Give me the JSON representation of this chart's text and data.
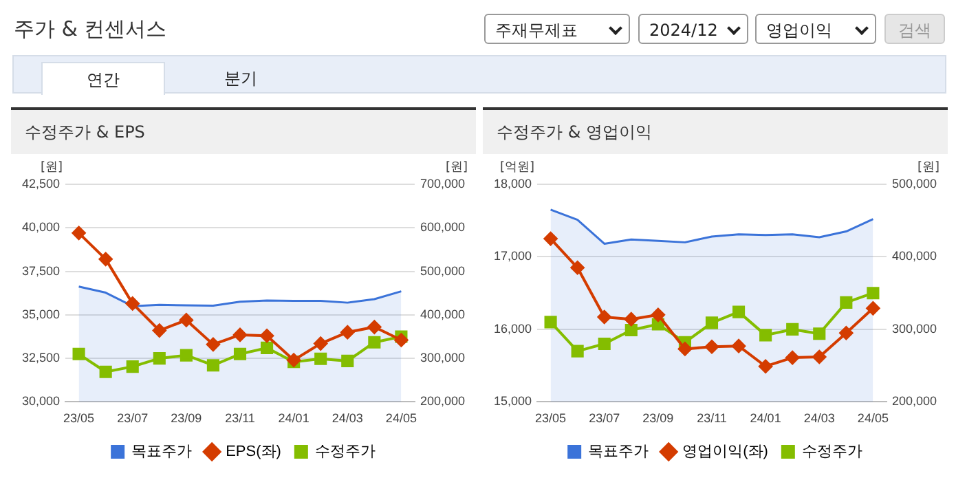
{
  "chart_data": [
    {
      "type": "other",
      "title": "주가 & 컨센서스",
      "annotations": [
        "주재무제표",
        "2024/12",
        "영업이익",
        "검색",
        "연간",
        "분기"
      ]
    },
    {
      "type": "line",
      "title": "수정주가 & EPS",
      "ylabel": "[원]",
      "y2label": "[원]",
      "categories": [
        "23/05",
        null,
        "23/07",
        null,
        "23/09",
        null,
        "23/11",
        null,
        "24/01",
        null,
        "24/03",
        null,
        "24/05"
      ],
      "series": [
        {
          "name": "목표주가",
          "type": "area",
          "axis": "y2",
          "color": "#3b73d9",
          "marker": "none",
          "values": [
            465000,
            451000,
            420000,
            423000,
            422000,
            421000,
            430000,
            433000,
            432000,
            432000,
            428000,
            436000,
            454000
          ]
        },
        {
          "name": "EPS(좌)",
          "type": "line",
          "color": "#d43c00",
          "marker": "diamond",
          "values": [
            39700,
            38200,
            35650,
            34100,
            34700,
            33300,
            33850,
            33800,
            32400,
            33350,
            34000,
            34300,
            33550
          ]
        },
        {
          "name": "수정주가",
          "type": "line",
          "axis": "y2",
          "color": "#84bd00",
          "marker": "square",
          "values": [
            310000,
            269000,
            281000,
            300000,
            307000,
            284000,
            310000,
            324000,
            292000,
            299000,
            294000,
            337000,
            350000
          ]
        }
      ],
      "ylim": [
        30000,
        42500
      ],
      "yticks": [
        {
          "value": 30000,
          "label": "30,000"
        },
        {
          "value": 32500,
          "label": "32,500"
        },
        {
          "value": 35000,
          "label": "35,000"
        },
        {
          "value": 37500,
          "label": "37,500"
        },
        {
          "value": 40000,
          "label": "40,000"
        },
        {
          "value": 42500,
          "label": "42,500"
        }
      ],
      "y2lim": [
        200000,
        700000
      ],
      "y2ticks": [
        {
          "value": 200000,
          "label": "200,000"
        },
        {
          "value": 300000,
          "label": "300,000"
        },
        {
          "value": 400000,
          "label": "400,000"
        },
        {
          "value": 500000,
          "label": "500,000"
        },
        {
          "value": 600000,
          "label": "600,000"
        },
        {
          "value": 700000,
          "label": "700,000"
        }
      ],
      "grid": "y",
      "legend": "bottom"
    },
    {
      "type": "line",
      "title": "수정주가 & 영업이익",
      "ylabel": "[억원]",
      "y2label": "[원]",
      "categories": [
        "23/05",
        null,
        "23/07",
        null,
        "23/09",
        null,
        "23/11",
        null,
        "24/01",
        null,
        "24/03",
        null,
        "24/05"
      ],
      "series": [
        {
          "name": "목표주가",
          "type": "area",
          "axis": "y2",
          "color": "#3b73d9",
          "marker": "none",
          "values": [
            465000,
            451000,
            418000,
            424000,
            422000,
            420000,
            428000,
            431000,
            430000,
            431000,
            427000,
            435000,
            452000
          ]
        },
        {
          "name": "영업이익(좌)",
          "type": "line",
          "color": "#d43c00",
          "marker": "diamond",
          "values": [
            17250,
            16850,
            16170,
            16140,
            16200,
            15730,
            15760,
            15770,
            15490,
            15610,
            15620,
            15950,
            16290
          ]
        },
        {
          "name": "수정주가",
          "type": "line",
          "axis": "y2",
          "color": "#84bd00",
          "marker": "square",
          "values": [
            310000,
            270000,
            280000,
            299000,
            307000,
            282000,
            309000,
            324000,
            292000,
            300000,
            294000,
            337000,
            350000
          ]
        }
      ],
      "ylim": [
        15000,
        18000
      ],
      "yticks": [
        {
          "value": 15000,
          "label": "15,000"
        },
        {
          "value": 16000,
          "label": "16,000"
        },
        {
          "value": 17000,
          "label": "17,000"
        },
        {
          "value": 18000,
          "label": "18,000"
        }
      ],
      "y2lim": [
        200000,
        500000
      ],
      "y2ticks": [
        {
          "value": 200000,
          "label": "200,000"
        },
        {
          "value": 300000,
          "label": "300,000"
        },
        {
          "value": 400000,
          "label": "400,000"
        },
        {
          "value": 500000,
          "label": "500,000"
        }
      ],
      "grid": "y",
      "legend": "bottom"
    }
  ]
}
